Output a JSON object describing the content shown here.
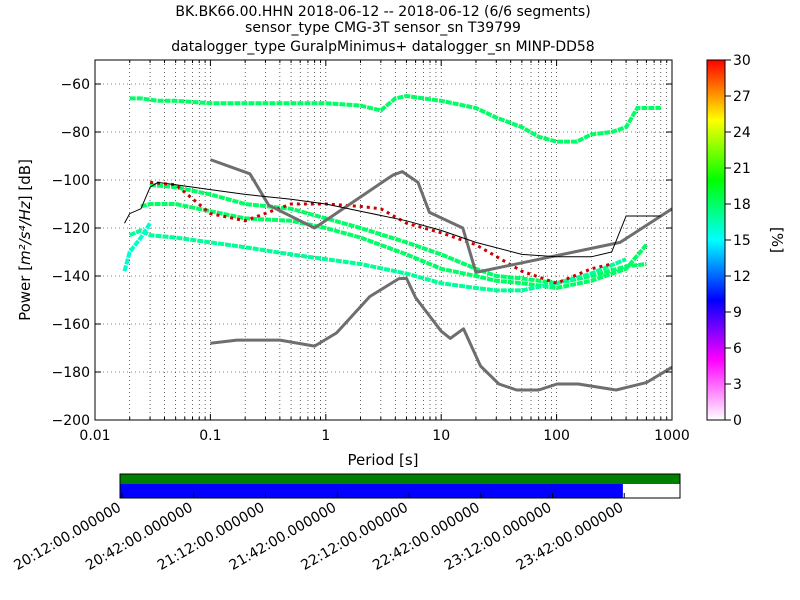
{
  "chart_data": {
    "type": "heatmap",
    "title_lines": [
      "BK.BK66.00.HHN   2018-06-12 -- 2018-06-12  (6/6 segments)",
      "sensor_type CMG-3T sensor_sn T39799",
      "datalogger_type GuralpMinimus+ datalogger_sn MINP-DD58"
    ],
    "xlabel": "Period [s]",
    "ylabel_prefix": "Power [",
    "ylabel_unit": "m²/s⁴/Hz",
    "ylabel_suffix": "] [dB]",
    "xscale": "log",
    "xlim": [
      0.01,
      1000
    ],
    "ylim": [
      -200,
      -50
    ],
    "x_ticks": [
      0.01,
      0.1,
      1,
      10,
      100,
      1000
    ],
    "x_tick_labels": [
      "0.01",
      "0.1",
      "1",
      "10",
      "100",
      "1000"
    ],
    "y_ticks": [
      -60,
      -80,
      -100,
      -120,
      -140,
      -160,
      -180,
      -200
    ],
    "y_tick_labels": [
      "−60",
      "−80",
      "−100",
      "−120",
      "−140",
      "−160",
      "−180",
      "−200"
    ],
    "grid": true,
    "colorbar": {
      "label": "[%]",
      "range": [
        0,
        30
      ],
      "ticks": [
        0,
        3,
        6,
        9,
        12,
        15,
        18,
        21,
        24,
        27,
        30
      ],
      "tick_labels": [
        "0",
        "3",
        "6",
        "9",
        "12",
        "15",
        "18",
        "21",
        "24",
        "27",
        "30"
      ],
      "colormap_stops": [
        "#ffffff",
        "#ff00ff",
        "#0000ff",
        "#00ffff",
        "#00ff00",
        "#ffff00",
        "#ff0000"
      ]
    },
    "noise_models": {
      "color": "#6e6e6e",
      "high": {
        "x": [
          0.1,
          0.22,
          0.32,
          0.8,
          3.8,
          4.6,
          6.3,
          7.9,
          15.4,
          20,
          354.8,
          1000
        ],
        "y": [
          -91.5,
          -97.4,
          -110.5,
          -120,
          -98,
          -96.5,
          -101,
          -113.5,
          -120,
          -138.5,
          -126,
          -112
        ]
      },
      "low": {
        "x": [
          0.1,
          0.17,
          0.4,
          0.8,
          1.24,
          2.4,
          4.3,
          5,
          6,
          10,
          12,
          15.6,
          21.9,
          31.6,
          45,
          70,
          101,
          154,
          328,
          600,
          1000
        ],
        "y": [
          -168,
          -166.7,
          -166.7,
          -169.2,
          -163.7,
          -148.6,
          -141.1,
          -141,
          -149,
          -163,
          -166,
          -162,
          -177.5,
          -185,
          -187.5,
          -187.5,
          -185,
          -185,
          -187.5,
          -184.4,
          -178
        ]
      }
    },
    "mean_curve": {
      "color": "#000000",
      "x": [
        0.018,
        0.02,
        0.025,
        0.03,
        0.035,
        0.05,
        0.1,
        0.2,
        0.5,
        1,
        2,
        5,
        10,
        20,
        50,
        100,
        200,
        300,
        400,
        500,
        800
      ],
      "y": [
        -118,
        -114,
        -112,
        -103,
        -101,
        -102,
        -104,
        -106,
        -108,
        -110,
        -113,
        -117,
        -121,
        -126,
        -131,
        -132,
        -132,
        -130,
        -115,
        -115,
        -115
      ]
    },
    "mode_curve": {
      "color": "#cc0000",
      "x": [
        0.03,
        0.05,
        0.1,
        0.2,
        0.5,
        1,
        2,
        3,
        5,
        10,
        20,
        50,
        100,
        200,
        300
      ],
      "y": [
        -101,
        -102,
        -114,
        -117,
        -110,
        -110,
        -111,
        -112,
        -118,
        -122,
        -127,
        -138,
        -143,
        -137,
        -135
      ]
    },
    "density_bands": [
      {
        "label_percent": 18,
        "x": [
          0.02,
          0.025,
          0.035,
          0.05,
          0.1,
          0.2,
          0.3,
          0.5,
          1,
          2,
          3,
          4,
          5,
          7,
          10,
          20,
          30,
          50,
          70,
          100,
          150,
          200,
          300,
          400,
          500,
          800
        ],
        "y": [
          -66,
          -66,
          -67,
          -67,
          -68,
          -68,
          -68,
          -68,
          -68,
          -69,
          -71,
          -66,
          -65,
          -66,
          -67,
          -70,
          -74,
          -78,
          -82,
          -84,
          -84,
          -81,
          -80,
          -78,
          -70,
          -70
        ]
      },
      {
        "label_percent": 18,
        "x": [
          0.03,
          0.05,
          0.1,
          0.2,
          0.5,
          1,
          2,
          5,
          10,
          20,
          30,
          50,
          100,
          200,
          400,
          600
        ],
        "y": [
          -102,
          -103,
          -106,
          -110,
          -112,
          -116,
          -120,
          -126,
          -131,
          -137,
          -140,
          -141,
          -143,
          -140,
          -136,
          -135
        ]
      },
      {
        "label_percent": 18,
        "x": [
          0.025,
          0.03,
          0.05,
          0.1,
          0.2,
          0.5,
          1,
          2,
          5,
          10,
          20,
          30,
          50,
          100,
          200,
          400,
          600
        ],
        "y": [
          -111,
          -110,
          -110,
          -113,
          -116,
          -117,
          -120,
          -124,
          -131,
          -137,
          -140,
          -142,
          -143,
          -145,
          -142,
          -137,
          -127
        ]
      },
      {
        "label_percent": 17,
        "x": [
          0.02,
          0.025,
          0.03,
          0.05,
          0.1,
          0.2,
          0.5,
          1,
          2,
          5,
          10,
          20,
          30,
          50,
          100,
          200,
          400
        ],
        "y": [
          -123,
          -121,
          -123,
          -124,
          -126,
          -128,
          -131,
          -133,
          -135,
          -139,
          -143,
          -145,
          -146,
          -146,
          -143,
          -139,
          -133
        ]
      },
      {
        "label_percent": 16,
        "x": [
          0.018,
          0.02,
          0.025,
          0.03
        ],
        "y": [
          -138,
          -130,
          -124,
          -118
        ]
      }
    ],
    "timeline": {
      "labels": [
        "20:12:00.000000",
        "20:42:00.000000",
        "21:12:00.000000",
        "21:42:00.000000",
        "22:12:00.000000",
        "22:42:00.000000",
        "23:12:00.000000",
        "23:42:00.000000"
      ],
      "data_fraction_top": 1.0,
      "data_fraction_bottom": 0.898,
      "top_color": "#008000",
      "bottom_color": "#0000ff"
    }
  }
}
